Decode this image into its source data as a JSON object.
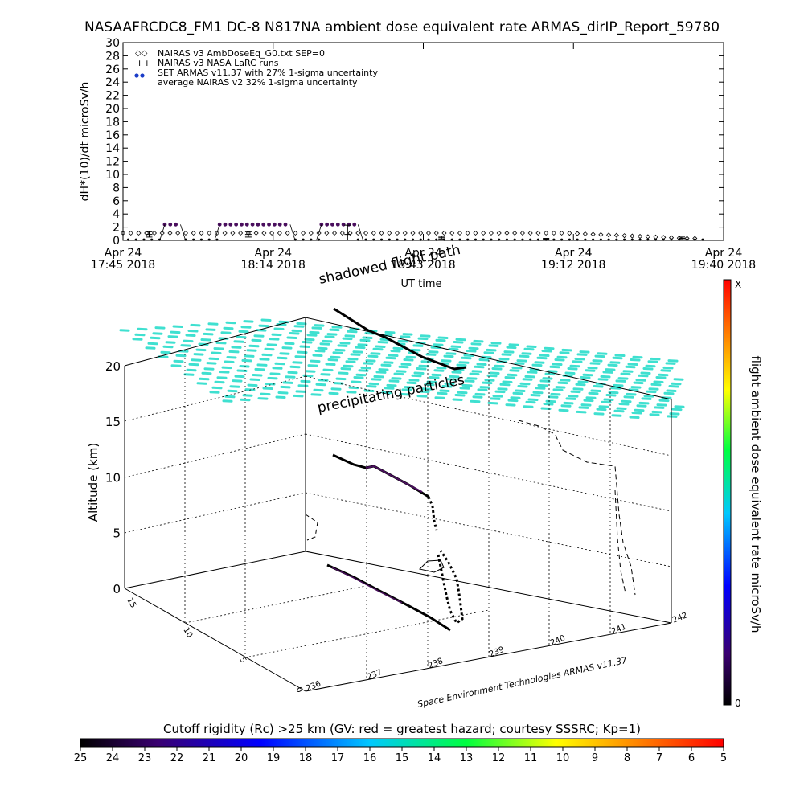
{
  "title": "NASAAFRCDC8_FM1 DC-8   N817NA ambient dose equivalent rate ARMAS_dirIP_Report_59780",
  "chart_data": [
    {
      "type": "scatter",
      "ylabel": "dH*(10)/dt microSv/h",
      "xlabel": "UT time",
      "ylim": [
        0,
        30
      ],
      "yticks": [
        "0",
        "2",
        "4",
        "6",
        "8",
        "10",
        "12",
        "14",
        "16",
        "18",
        "20",
        "22",
        "24",
        "26",
        "28",
        "30"
      ],
      "xticks": [
        {
          "date": "Apr 24",
          "time": "17:45 2018"
        },
        {
          "date": "Apr 24",
          "time": "18:14 2018"
        },
        {
          "date": "Apr 24",
          "time": "18:43 2018"
        },
        {
          "date": "Apr 24",
          "time": "19:12 2018"
        },
        {
          "date": "Apr 24",
          "time": "19:40 2018"
        }
      ],
      "legend_position": "top-left",
      "legend": [
        "NAIRAS v3 AmbDoseEq_G0.txt SEP=0",
        "NAIRAS v3 NASA LaRC runs",
        "SET ARMAS v11.37 with 27% 1-sigma uncertainty",
        "average NAIRAS v2 32% 1-sigma uncertainty"
      ],
      "series": [
        {
          "marker": "diamond",
          "x_minutes": [
            0,
            5,
            10,
            15,
            20,
            25,
            30,
            35,
            40,
            45,
            50,
            55,
            60,
            65,
            70,
            75,
            80,
            85,
            90,
            95,
            100,
            105,
            110
          ],
          "values": [
            1.1,
            1.1,
            1.1,
            1.1,
            1.1,
            1.1,
            1.1,
            1.1,
            1.1,
            1.1,
            1.1,
            1.1,
            1.1,
            1.1,
            1.1,
            1.1,
            1.1,
            1.1,
            0.9,
            0.6,
            0.4,
            0.3,
            0.3
          ]
        },
        {
          "marker": "dot",
          "segments": [
            {
              "x0": 8,
              "x1": 11,
              "value": 2.4
            },
            {
              "x0": 18.5,
              "x1": 32,
              "value": 2.4
            },
            {
              "x0": 38,
              "x1": 45,
              "value": 2.4
            },
            {
              "x0": 45,
              "x1": 112,
              "value": 0.1
            }
          ]
        },
        {
          "marker": "errorbar",
          "x_minutes": [
            5,
            24,
            43,
            61,
            81,
            107
          ],
          "values": [
            0.9,
            0.9,
            0.9,
            0.4,
            0.2,
            0.3
          ],
          "errors": [
            0.4,
            0.4,
            1.4,
            0.2,
            0.1,
            0.2
          ]
        }
      ],
      "path_label": "shadowed flight path",
      "annotation": "precipitating particles"
    },
    {
      "type": "scatter",
      "zlabel": "Altitude (km)",
      "zticks": [
        "0",
        "5",
        "10",
        "15",
        "20"
      ],
      "lat_ticks": [
        "15",
        "10",
        "5",
        "0"
      ],
      "lon_ticks": [
        "236",
        "237",
        "238",
        "239",
        "240",
        "241",
        "242"
      ],
      "credit": "Space Environment Technologies ARMAS v11.37",
      "colorbar": {
        "label": "flight ambient dose equivalent rate microSv/h",
        "top": "X",
        "bottom": "0"
      }
    }
  ],
  "cutoff_bar": {
    "label": "Cutoff rigidity (Rc) >25 km (GV: red = greatest hazard; courtesy SSSRC; Kp=1)",
    "ticks": [
      "25",
      "24",
      "23",
      "22",
      "21",
      "20",
      "19",
      "18",
      "17",
      "16",
      "15",
      "14",
      "13",
      "12",
      "11",
      "10",
      "9",
      "8",
      "7",
      "6",
      "5"
    ]
  },
  "colors": {
    "dose": "#4a0f5e",
    "particles": "#3fe0d0",
    "ink": "#000000"
  }
}
